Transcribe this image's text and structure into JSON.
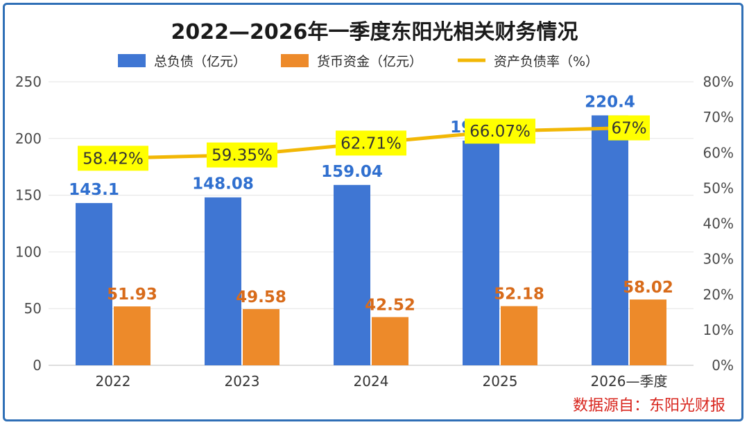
{
  "chart_data": {
    "type": "bar",
    "title": "2022—2026年一季度东阳光相关财务情况",
    "categories": [
      "2022",
      "2023",
      "2024",
      "2025",
      "2026—季度"
    ],
    "series": [
      {
        "name": "总负债（亿元）",
        "kind": "bar",
        "axis": "left",
        "color": "#3f76d3",
        "label_color": "#2f6fcf",
        "values": [
          143.1,
          148.08,
          159.04,
          198.15,
          220.4
        ],
        "labels": [
          "143.1",
          "148.08",
          "159.04",
          "198.15",
          "220.4"
        ]
      },
      {
        "name": "货币资金（亿元）",
        "kind": "bar",
        "axis": "left",
        "color": "#ed8a2a",
        "label_color": "#d86b1a",
        "values": [
          51.93,
          49.58,
          42.52,
          52.18,
          58.02
        ],
        "labels": [
          "51.93",
          "49.58",
          "42.52",
          "52.18",
          "58.02"
        ]
      },
      {
        "name": "资产负债率（%）",
        "kind": "line",
        "axis": "right",
        "color": "#f2b705",
        "label_bg": "#ffff00",
        "values": [
          58.42,
          59.35,
          62.71,
          66.07,
          67
        ],
        "labels": [
          "58.42%",
          "59.35%",
          "62.71%",
          "66.07%",
          "67%"
        ]
      }
    ],
    "y_left": {
      "min": 0,
      "max": 250,
      "ticks": [
        "0",
        "50",
        "100",
        "150",
        "200",
        "250"
      ]
    },
    "y_right": {
      "min": 0,
      "max": 80,
      "ticks": [
        "0%",
        "10%",
        "20%",
        "30%",
        "40%",
        "50%",
        "60%",
        "70%",
        "80%"
      ]
    },
    "grid": true,
    "legend_position": "top-center",
    "source": "数据源自：东阳光财报"
  }
}
